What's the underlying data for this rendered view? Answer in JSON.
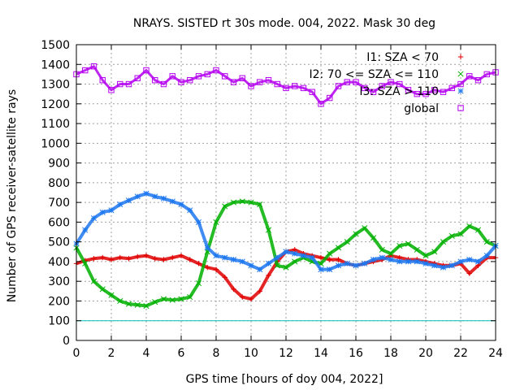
{
  "chart_data": {
    "type": "scatter",
    "title": "NRAYS. SISTED rt 30s mode. 004, 2022. Mask 30 deg",
    "xlabel": "GPS time [hours of doy 004, 2022]",
    "ylabel": "Number of GPS receiver-satellite rays",
    "xlim": [
      0,
      24
    ],
    "ylim": [
      0,
      1500
    ],
    "xticks": [
      "0",
      "2",
      "4",
      "6",
      "8",
      "10",
      "12",
      "14",
      "16",
      "18",
      "20",
      "22",
      "24"
    ],
    "yticks": [
      "0",
      "100",
      "200",
      "300",
      "400",
      "500",
      "600",
      "700",
      "800",
      "900",
      "1000",
      "1100",
      "1200",
      "1300",
      "1400",
      "1500"
    ],
    "grid": true,
    "legend_position": "top-right",
    "reference_line": {
      "y": 100,
      "color": "#00c0c0"
    },
    "series": [
      {
        "name": "I1: SZA < 70",
        "marker": "+",
        "color": "#e00000",
        "x": [
          0,
          0.5,
          1,
          1.5,
          2,
          2.5,
          3,
          3.5,
          4,
          4.5,
          5,
          5.5,
          6,
          6.5,
          7,
          7.5,
          8,
          8.5,
          9,
          9.5,
          10,
          10.5,
          11,
          11.5,
          12,
          12.5,
          13,
          13.5,
          14,
          14.5,
          15,
          15.5,
          16,
          16.5,
          17,
          17.5,
          18,
          18.5,
          19,
          19.5,
          20,
          20.5,
          21,
          21.5,
          22,
          22.5,
          23,
          23.5,
          24
        ],
        "y": [
          390,
          405,
          415,
          420,
          410,
          420,
          415,
          425,
          430,
          415,
          410,
          420,
          430,
          410,
          390,
          370,
          360,
          320,
          260,
          220,
          210,
          250,
          330,
          400,
          450,
          460,
          440,
          430,
          420,
          410,
          410,
          390,
          380,
          390,
          400,
          410,
          430,
          420,
          410,
          410,
          400,
          390,
          380,
          380,
          390,
          340,
          380,
          420,
          420
        ]
      },
      {
        "name": "I2: 70 <= SZA <= 110",
        "marker": "x",
        "color": "#00b000",
        "x": [
          0,
          0.5,
          1,
          1.5,
          2,
          2.5,
          3,
          3.5,
          4,
          4.5,
          5,
          5.5,
          6,
          6.5,
          7,
          7.5,
          8,
          8.5,
          9,
          9.5,
          10,
          10.5,
          11,
          11.5,
          12,
          12.5,
          13,
          13.5,
          14,
          14.5,
          15,
          15.5,
          16,
          16.5,
          17,
          17.5,
          18,
          18.5,
          19,
          19.5,
          20,
          20.5,
          21,
          21.5,
          22,
          22.5,
          23,
          23.5,
          24
        ],
        "y": [
          470,
          390,
          300,
          260,
          230,
          200,
          185,
          180,
          175,
          195,
          210,
          205,
          210,
          220,
          290,
          450,
          600,
          680,
          700,
          705,
          700,
          690,
          560,
          380,
          370,
          400,
          420,
          400,
          390,
          440,
          470,
          500,
          540,
          570,
          520,
          460,
          440,
          480,
          490,
          460,
          430,
          450,
          500,
          530,
          540,
          580,
          560,
          500,
          480
        ]
      },
      {
        "name": "I3: SZA > 110",
        "marker": "*",
        "color": "#1e78f0",
        "x": [
          0,
          0.5,
          1,
          1.5,
          2,
          2.5,
          3,
          3.5,
          4,
          4.5,
          5,
          5.5,
          6,
          6.5,
          7,
          7.5,
          8,
          8.5,
          9,
          9.5,
          10,
          10.5,
          11,
          11.5,
          12,
          12.5,
          13,
          13.5,
          14,
          14.5,
          15,
          15.5,
          16,
          16.5,
          17,
          17.5,
          18,
          18.5,
          19,
          19.5,
          20,
          20.5,
          21,
          21.5,
          22,
          22.5,
          23,
          23.5,
          24
        ],
        "y": [
          490,
          560,
          620,
          650,
          660,
          690,
          710,
          730,
          745,
          730,
          720,
          705,
          690,
          660,
          600,
          470,
          430,
          420,
          410,
          400,
          380,
          360,
          390,
          420,
          450,
          440,
          430,
          420,
          360,
          360,
          380,
          390,
          380,
          390,
          410,
          420,
          410,
          400,
          400,
          400,
          390,
          380,
          370,
          380,
          400,
          410,
          400,
          430,
          480
        ]
      },
      {
        "name": "global",
        "marker": "square",
        "color": "#b400f0",
        "x": [
          0,
          0.5,
          1,
          1.5,
          2,
          2.5,
          3,
          3.5,
          4,
          4.5,
          5,
          5.5,
          6,
          6.5,
          7,
          7.5,
          8,
          8.5,
          9,
          9.5,
          10,
          10.5,
          11,
          11.5,
          12,
          12.5,
          13,
          13.5,
          14,
          14.5,
          15,
          15.5,
          16,
          16.5,
          17,
          17.5,
          18,
          18.5,
          19,
          19.5,
          20,
          20.5,
          21,
          21.5,
          22,
          22.5,
          23,
          23.5,
          24
        ],
        "y": [
          1350,
          1370,
          1390,
          1320,
          1270,
          1300,
          1300,
          1330,
          1370,
          1320,
          1300,
          1340,
          1310,
          1320,
          1340,
          1350,
          1370,
          1340,
          1310,
          1330,
          1290,
          1310,
          1320,
          1300,
          1280,
          1290,
          1280,
          1260,
          1200,
          1230,
          1290,
          1310,
          1310,
          1280,
          1260,
          1290,
          1310,
          1300,
          1270,
          1250,
          1250,
          1270,
          1260,
          1280,
          1300,
          1340,
          1320,
          1350,
          1360
        ]
      }
    ]
  }
}
